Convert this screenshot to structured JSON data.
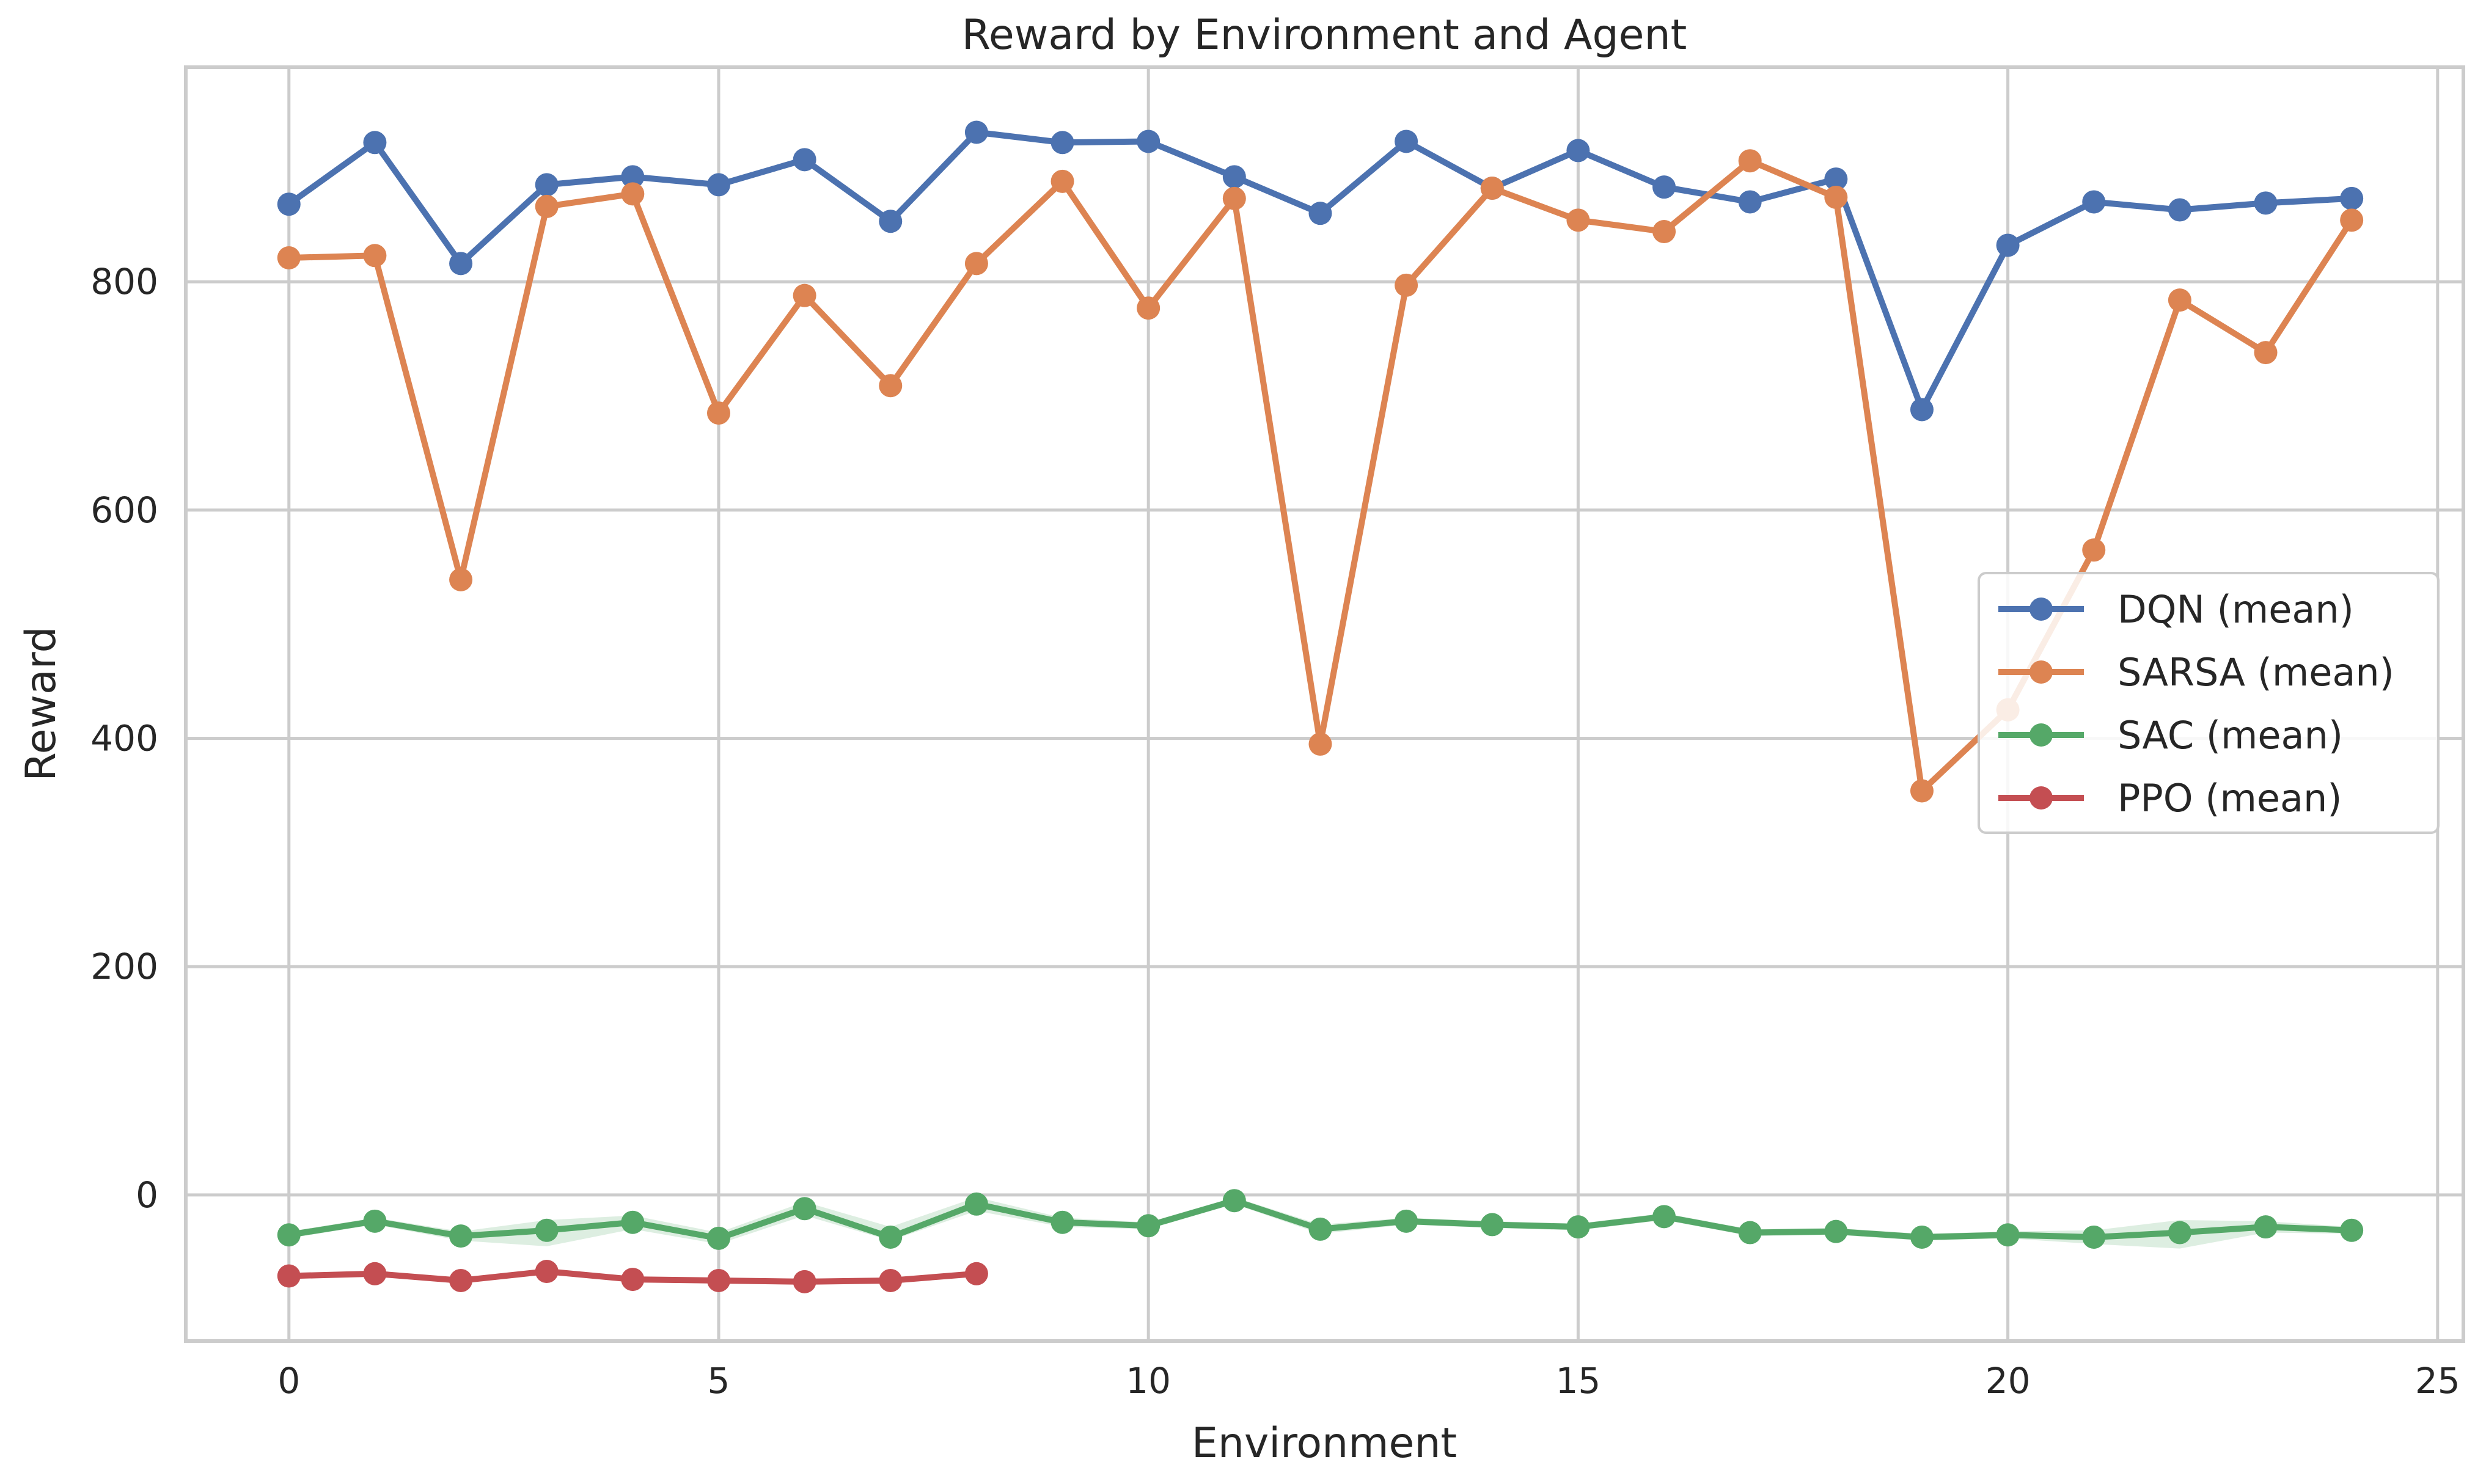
{
  "chart_data": {
    "type": "line",
    "title": "Reward by Environment and Agent",
    "xlabel": "Environment",
    "ylabel": "Reward",
    "xlim": [
      -1.2,
      25.3
    ],
    "ylim": [
      -128,
      988
    ],
    "xticks": [
      0,
      5,
      10,
      15,
      20,
      25
    ],
    "yticks": [
      0,
      200,
      400,
      600,
      800
    ],
    "xtick_labels": [
      "0",
      "5",
      "10",
      "15",
      "20",
      "25"
    ],
    "ytick_labels": [
      "0",
      "200",
      "400",
      "600",
      "800"
    ],
    "grid": true,
    "legend_position": "center-right",
    "series": [
      {
        "name": "DQN (mean)",
        "color": "#4c72b0",
        "x": [
          0,
          1,
          2,
          3,
          4,
          5,
          6,
          7,
          8,
          9,
          10,
          11,
          12,
          13,
          14,
          15,
          16,
          17,
          18,
          19,
          20,
          21,
          22,
          23,
          24
        ],
        "values": [
          868,
          922,
          816,
          885,
          892,
          885,
          907,
          853,
          931,
          922,
          923,
          892,
          860,
          923,
          882,
          915,
          883,
          870,
          890,
          688,
          832,
          870,
          863,
          869,
          873
        ]
      },
      {
        "name": "SARSA (mean)",
        "color": "#dd8452",
        "x": [
          0,
          1,
          2,
          3,
          4,
          5,
          6,
          7,
          8,
          9,
          10,
          11,
          12,
          13,
          14,
          15,
          16,
          17,
          18,
          19,
          20,
          21,
          22,
          23,
          24
        ],
        "values": [
          821,
          823,
          539,
          866,
          877,
          685,
          788,
          709,
          816,
          888,
          777,
          873,
          395,
          797,
          882,
          854,
          844,
          906,
          874,
          354,
          425,
          565,
          784,
          738,
          854
        ]
      },
      {
        "name": "SAC (mean)",
        "color": "#55a868",
        "x": [
          0,
          1,
          2,
          3,
          4,
          5,
          6,
          7,
          8,
          9,
          10,
          11,
          12,
          13,
          14,
          15,
          16,
          17,
          18,
          19,
          20,
          21,
          22,
          23,
          24
        ],
        "values": [
          -35,
          -23,
          -36,
          -31,
          -24,
          -38,
          -12,
          -37,
          -8,
          -24,
          -27,
          -5,
          -30,
          -23,
          -26,
          -28,
          -19,
          -33,
          -32,
          -37,
          -35,
          -37,
          -33,
          -28,
          -31
        ],
        "band_low": [
          -38,
          -26,
          -40,
          -45,
          -30,
          -43,
          -18,
          -40,
          -14,
          -28,
          -30,
          -8,
          -34,
          -26,
          -29,
          -31,
          -22,
          -36,
          -35,
          -40,
          -38,
          -43,
          -47,
          -33,
          -34
        ],
        "band_high": [
          -32,
          -20,
          -32,
          -22,
          -18,
          -33,
          -6,
          -28,
          -2,
          -20,
          -24,
          -2,
          -26,
          -20,
          -23,
          -25,
          -16,
          -30,
          -29,
          -34,
          -32,
          -31,
          -22,
          -23,
          -28
        ]
      },
      {
        "name": "PPO (mean)",
        "color": "#c44e52",
        "x": [
          0,
          1,
          2,
          3,
          4,
          5,
          6,
          7,
          8
        ],
        "values": [
          -71,
          -69,
          -75,
          -67,
          -74,
          -75,
          -76,
          -75,
          -69
        ]
      }
    ]
  }
}
